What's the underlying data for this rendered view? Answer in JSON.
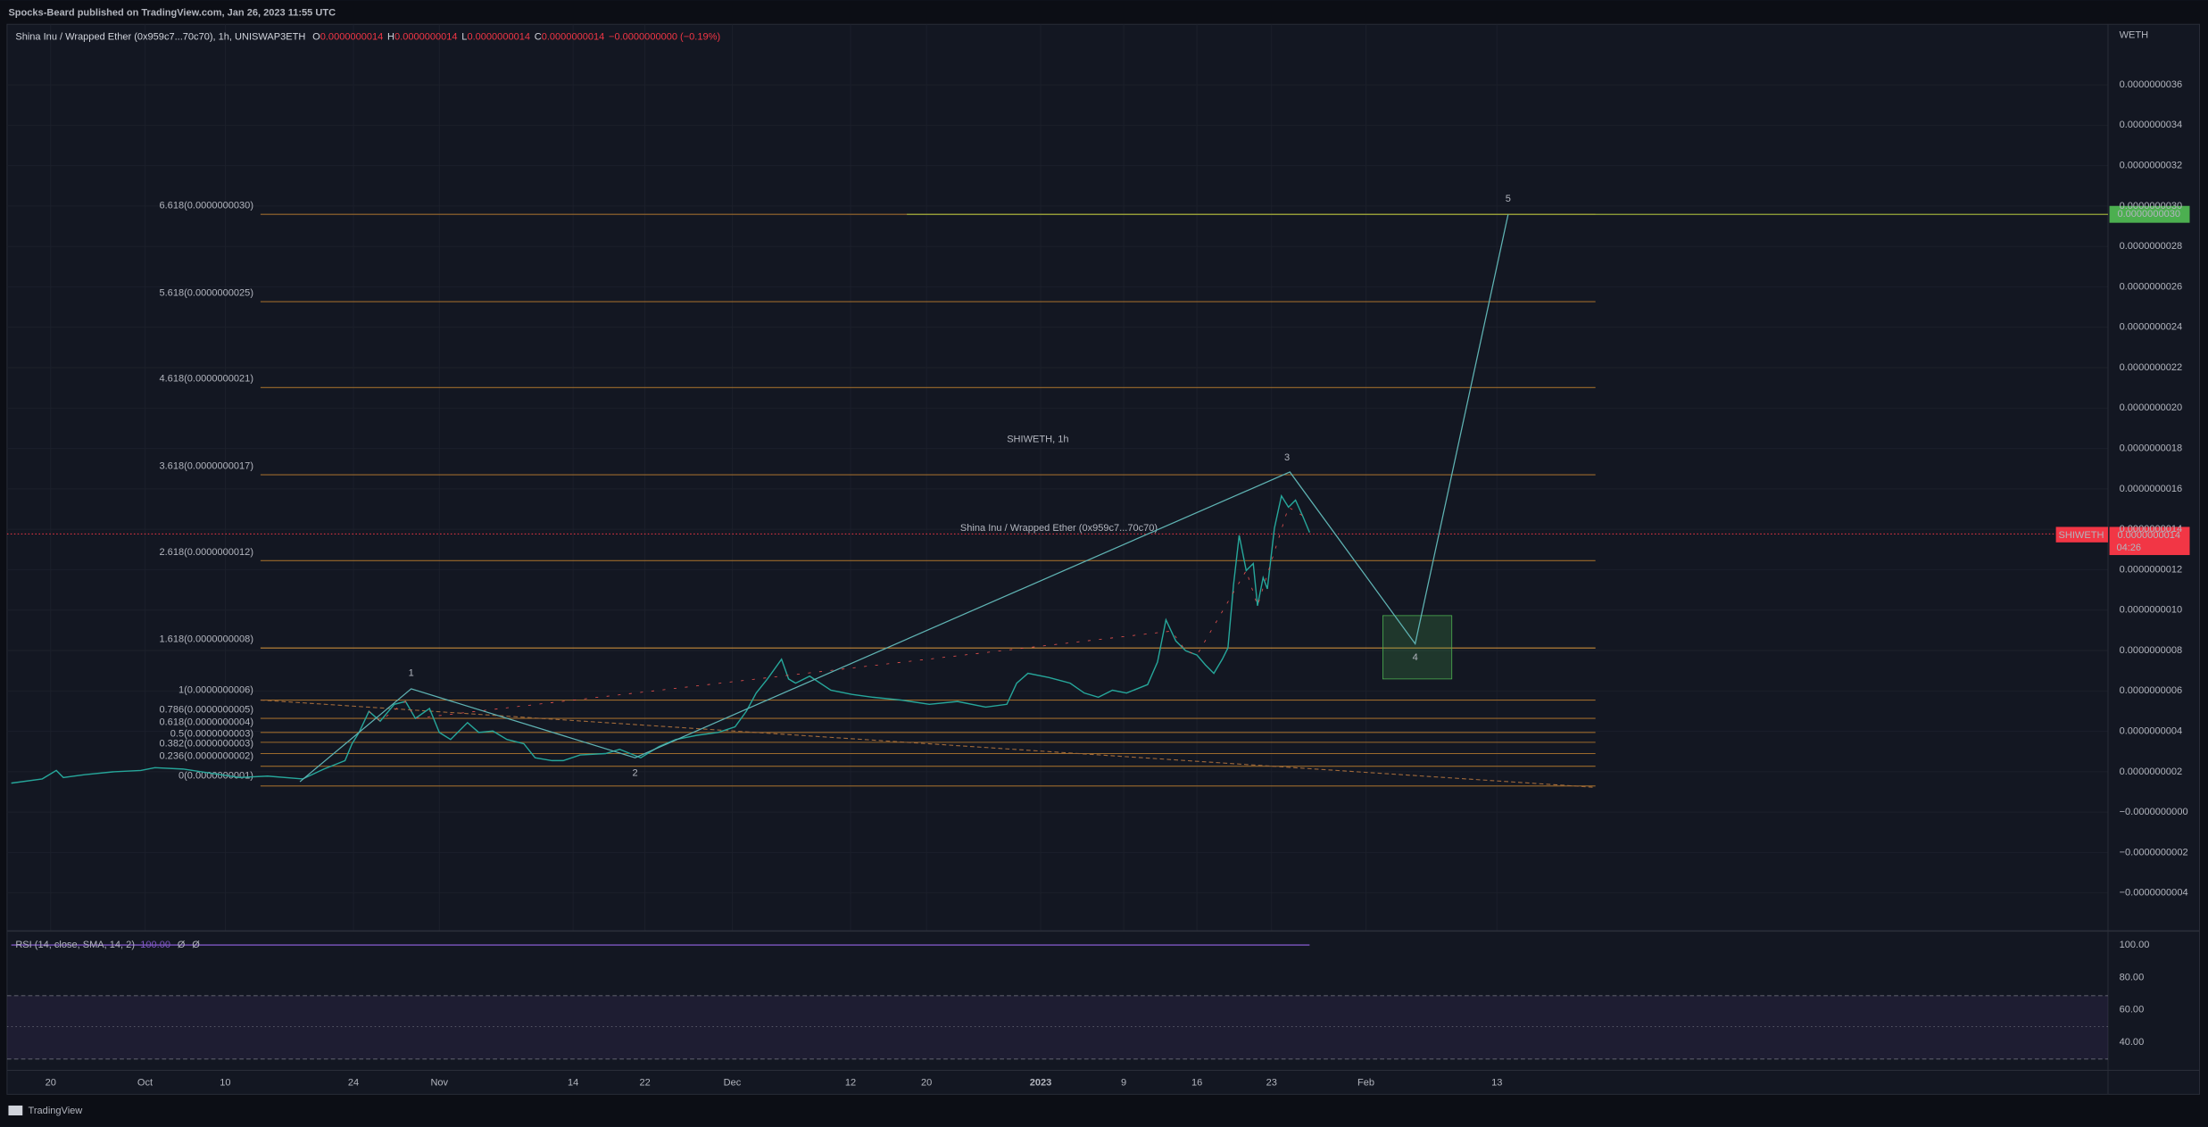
{
  "header": {
    "publisher": "Spocks-Beard published on TradingView.com, Jan 26, 2023 11:55 UTC"
  },
  "legend": {
    "symbol": "Shina Inu / Wrapped Ether (0x959c7...70c70), 1h, UNISWAP3ETH",
    "items": [
      {
        "label": "O",
        "value": "0.0000000014"
      },
      {
        "label": "H",
        "value": "0.0000000014"
      },
      {
        "label": "L",
        "value": "0.0000000014"
      },
      {
        "label": "C",
        "value": "0.0000000014"
      }
    ],
    "change": "−0.0000000000 (−0.19%)"
  },
  "watermark": {
    "symbol": "SHIWETH, 1h",
    "name": "Shina Inu / Wrapped Ether (0x959c7...70c70)"
  },
  "price_axis": {
    "currency": "WETH",
    "ticks": [
      "0.0000000036",
      "0.0000000034",
      "0.0000000032",
      "0.0000000030",
      "0.0000000028",
      "0.0000000026",
      "0.0000000024",
      "0.0000000022",
      "0.0000000020",
      "0.0000000018",
      "0.0000000016",
      "0.0000000014",
      "0.0000000012",
      "0.0000000010",
      "0.0000000008",
      "0.0000000006",
      "0.0000000004",
      "0.0000000002",
      "−0.0000000000",
      "−0.0000000002",
      "−0.0000000004"
    ]
  },
  "price_tags": {
    "symbol": "SHIWETH",
    "price": "0.0000000014",
    "countdown": "04:26",
    "target": "0.0000000030"
  },
  "fib_levels": [
    "6.618(0.0000000030)",
    "5.618(0.0000000025)",
    "4.618(0.0000000021)",
    "3.618(0.0000000017)",
    "2.618(0.0000000012)",
    "1.618(0.0000000008)",
    "1(0.0000000006)",
    "0.786(0.0000000005)",
    "0.618(0.0000000004)",
    "0.5(0.0000000003)",
    "0.382(0.0000000003)",
    "0.236(0.0000000002)",
    "0(0.0000000001)"
  ],
  "waves": [
    "1",
    "2",
    "3",
    "4",
    "5"
  ],
  "rsi": {
    "title": "RSI (14, close, SMA, 14, 2)",
    "value": "100.00",
    "na_1": "Ø",
    "na_2": "Ø",
    "ticks": [
      "100.00",
      "80.00",
      "60.00",
      "40.00"
    ]
  },
  "time_axis": [
    "20",
    "Oct",
    "10",
    "24",
    "Nov",
    "14",
    "22",
    "Dec",
    "12",
    "20",
    "2023",
    "9",
    "16",
    "23",
    "Feb",
    "13"
  ],
  "footer": {
    "brand": "TradingView"
  }
}
